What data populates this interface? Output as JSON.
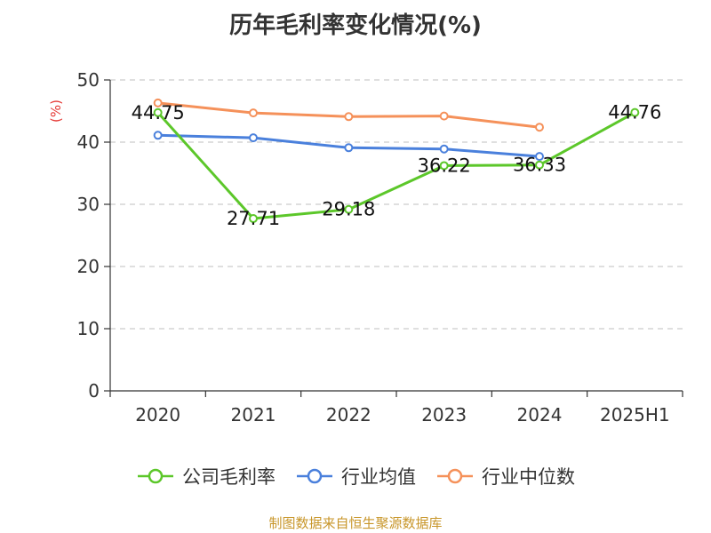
{
  "title": "历年毛利率变化情况(%)",
  "source": "制图数据来自恒生聚源数据库",
  "source_color": "#c8962a",
  "ylabel_color": "#e53935",
  "chart_data": {
    "type": "line",
    "title": "历年毛利率变化情况(%)",
    "xlabel": "",
    "ylabel": "(%)",
    "categories": [
      "2020",
      "2021",
      "2022",
      "2023",
      "2024",
      "2025H1"
    ],
    "ylim": [
      0,
      50
    ],
    "yticks": [
      0,
      10,
      20,
      30,
      40,
      50
    ],
    "grid": true,
    "legend_position": "bottom",
    "series": [
      {
        "name": "公司毛利率",
        "color": "#5cc72a",
        "values": [
          44.75,
          27.71,
          29.18,
          36.22,
          36.33,
          44.76
        ],
        "show_labels": true
      },
      {
        "name": "行业均值",
        "color": "#4a80dc",
        "values": [
          41.1,
          40.7,
          39.1,
          38.9,
          37.7,
          null
        ],
        "show_labels": false
      },
      {
        "name": "行业中位数",
        "color": "#f5915a",
        "values": [
          46.3,
          44.7,
          44.1,
          44.2,
          42.4,
          null
        ],
        "show_labels": false
      }
    ]
  }
}
